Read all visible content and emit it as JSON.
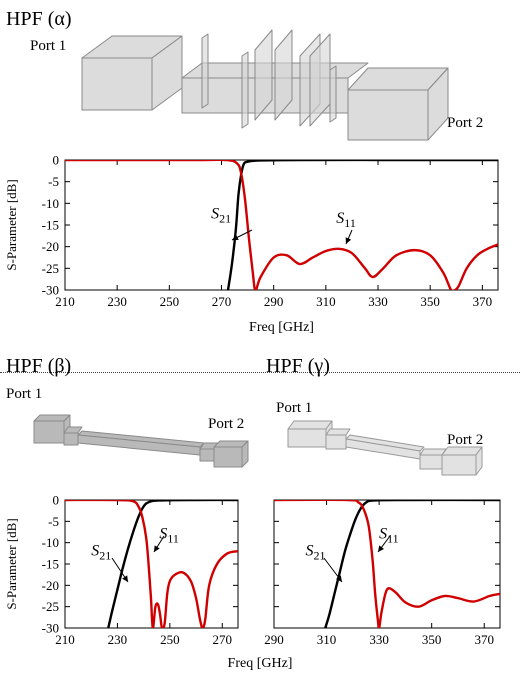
{
  "panels": {
    "alpha": {
      "title": "HPF (α)",
      "port1": "Port 1",
      "port2": "Port 2"
    },
    "beta": {
      "title": "HPF (β)",
      "port1": "Port 1",
      "port2": "Port 2"
    },
    "gamma": {
      "title": "HPF (γ)",
      "port1": "Port 1",
      "port2": "Port 2"
    }
  },
  "colors": {
    "s21": "#000000",
    "s11": "#d00000",
    "box": "#d6d6d6",
    "boxEdge": "#8a8a8a"
  },
  "chart_data": [
    {
      "id": "alpha",
      "type": "line",
      "xlabel": "Freq [GHz]",
      "ylabel": "S-Parameter [dB]",
      "xlim": [
        210,
        376
      ],
      "ylim": [
        -30,
        0
      ],
      "xticks": [
        210,
        230,
        250,
        270,
        290,
        310,
        330,
        350,
        370
      ],
      "yticks": [
        0,
        -5,
        -10,
        -15,
        -20,
        -25,
        -30
      ],
      "series": [
        {
          "name": "S21",
          "x": [
            272.5,
            274,
            275.5,
            276.5,
            277.5,
            278.5,
            280,
            285,
            300,
            340,
            376
          ],
          "y": [
            -30,
            -24,
            -16,
            -8,
            -3.5,
            -1,
            -0.4,
            -0.1,
            0,
            0,
            0
          ]
        },
        {
          "name": "S11",
          "x": [
            210,
            260,
            272,
            276,
            277.5,
            279,
            280.5,
            282,
            283,
            285,
            290,
            295,
            300,
            305,
            310,
            315,
            320,
            325,
            328,
            332,
            337,
            344,
            350,
            355,
            358,
            359.5,
            361,
            364,
            368,
            372,
            376
          ],
          "y": [
            0,
            0,
            0,
            -0.8,
            -3,
            -9,
            -18,
            -26,
            -30,
            -27,
            -22.5,
            -22,
            -24,
            -22.5,
            -21,
            -20.5,
            -21.5,
            -25,
            -27,
            -25,
            -22,
            -20.8,
            -22,
            -26,
            -30,
            -30,
            -29,
            -25,
            -22,
            -20.5,
            -19.5
          ]
        }
      ],
      "annotations": [
        {
          "label": "S",
          "sub": "21",
          "x": 266,
          "y": -13.5
        },
        {
          "label": "S",
          "sub": "11",
          "x": 314,
          "y": -14.5
        }
      ]
    },
    {
      "id": "beta",
      "type": "line",
      "xlabel": "",
      "ylabel": "S-Parameter [dB]",
      "xlim": [
        210,
        276
      ],
      "ylim": [
        -30,
        0
      ],
      "xticks": [
        210,
        230,
        250,
        270
      ],
      "yticks": [
        0,
        -5,
        -10,
        -15,
        -20,
        -25,
        -30
      ],
      "series": [
        {
          "name": "S21",
          "x": [
            226.5,
            228,
            230,
            232,
            234,
            236,
            238,
            240,
            242,
            246,
            260,
            276
          ],
          "y": [
            -30,
            -26,
            -21,
            -16,
            -11.5,
            -7.5,
            -4,
            -1.5,
            -0.5,
            -0.1,
            0,
            0
          ]
        },
        {
          "name": "S11",
          "x": [
            210,
            230,
            236,
            238,
            239.5,
            241,
            242,
            242.8,
            243.5,
            244.5,
            245.5,
            246.3,
            247,
            248,
            249,
            250,
            252,
            255,
            258,
            260,
            261.5,
            262.5,
            263.5,
            265,
            268,
            272,
            276
          ],
          "y": [
            0,
            0,
            -0.3,
            -1.5,
            -4,
            -9,
            -16,
            -23,
            -30,
            -25,
            -24.5,
            -27,
            -30,
            -29,
            -22,
            -19,
            -17.5,
            -17,
            -19,
            -23,
            -28,
            -30,
            -28,
            -20,
            -15,
            -12.5,
            -12
          ]
        }
      ],
      "annotations": [
        {
          "label": "S",
          "sub": "21",
          "x": 220,
          "y": -13
        },
        {
          "label": "S",
          "sub": "11",
          "x": 246,
          "y": -9
        }
      ]
    },
    {
      "id": "gamma",
      "type": "line",
      "xlabel": "",
      "ylabel": "",
      "xlim": [
        290,
        376
      ],
      "ylim": [
        -30,
        0
      ],
      "xticks": [
        290,
        310,
        330,
        350,
        370
      ],
      "yticks": [
        0,
        -5,
        -10,
        -15,
        -20,
        -25,
        -30
      ],
      "series": [
        {
          "name": "S21",
          "x": [
            309.5,
            311,
            313,
            315,
            317,
            319,
            321,
            323,
            325,
            328,
            340,
            376
          ],
          "y": [
            -30,
            -27,
            -22,
            -17,
            -12,
            -8,
            -4.5,
            -2,
            -0.6,
            -0.1,
            0,
            0
          ]
        },
        {
          "name": "S11",
          "x": [
            290,
            318,
            322,
            324,
            326,
            327.5,
            328.5,
            329.5,
            330,
            331,
            333,
            336,
            340,
            345,
            350,
            355,
            360,
            366,
            372,
            376
          ],
          "y": [
            0,
            0,
            -0.5,
            -2,
            -6,
            -14,
            -22,
            -28,
            -30,
            -26,
            -21,
            -21.5,
            -24,
            -25,
            -23.5,
            -22.5,
            -23,
            -23.8,
            -22.5,
            -22
          ]
        }
      ],
      "annotations": [
        {
          "label": "S",
          "sub": "21",
          "x": 302,
          "y": -13
        },
        {
          "label": "S",
          "sub": "11",
          "x": 330,
          "y": -9
        }
      ]
    }
  ]
}
